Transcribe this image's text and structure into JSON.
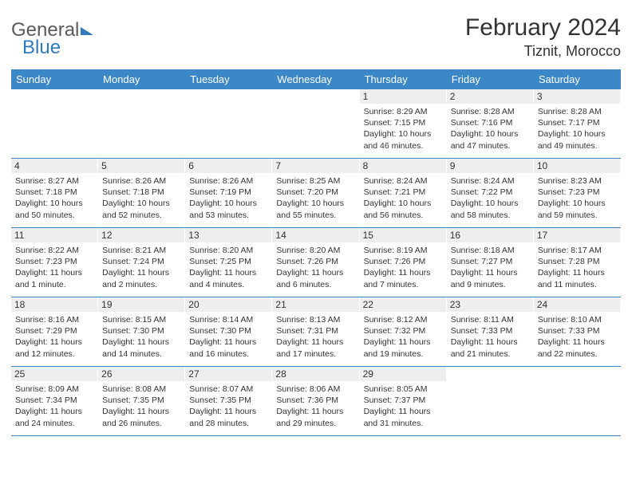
{
  "brand": {
    "part1": "General",
    "part2": "Blue"
  },
  "title": "February 2024",
  "location": "Tiznit, Morocco",
  "day_headers": [
    "Sunday",
    "Monday",
    "Tuesday",
    "Wednesday",
    "Thursday",
    "Friday",
    "Saturday"
  ],
  "colors": {
    "header_bg": "#3b87c8",
    "header_text": "#ffffff",
    "daynum_bg": "#eeeeee",
    "border": "#3b87c8",
    "text": "#333333",
    "logo_gray": "#5a5a5a",
    "logo_blue": "#2f7abf",
    "background": "#ffffff"
  },
  "weeks": [
    [
      null,
      null,
      null,
      null,
      {
        "n": "1",
        "sr": "8:29 AM",
        "ss": "7:15 PM",
        "dl": "10 hours and 46 minutes."
      },
      {
        "n": "2",
        "sr": "8:28 AM",
        "ss": "7:16 PM",
        "dl": "10 hours and 47 minutes."
      },
      {
        "n": "3",
        "sr": "8:28 AM",
        "ss": "7:17 PM",
        "dl": "10 hours and 49 minutes."
      }
    ],
    [
      {
        "n": "4",
        "sr": "8:27 AM",
        "ss": "7:18 PM",
        "dl": "10 hours and 50 minutes."
      },
      {
        "n": "5",
        "sr": "8:26 AM",
        "ss": "7:18 PM",
        "dl": "10 hours and 52 minutes."
      },
      {
        "n": "6",
        "sr": "8:26 AM",
        "ss": "7:19 PM",
        "dl": "10 hours and 53 minutes."
      },
      {
        "n": "7",
        "sr": "8:25 AM",
        "ss": "7:20 PM",
        "dl": "10 hours and 55 minutes."
      },
      {
        "n": "8",
        "sr": "8:24 AM",
        "ss": "7:21 PM",
        "dl": "10 hours and 56 minutes."
      },
      {
        "n": "9",
        "sr": "8:24 AM",
        "ss": "7:22 PM",
        "dl": "10 hours and 58 minutes."
      },
      {
        "n": "10",
        "sr": "8:23 AM",
        "ss": "7:23 PM",
        "dl": "10 hours and 59 minutes."
      }
    ],
    [
      {
        "n": "11",
        "sr": "8:22 AM",
        "ss": "7:23 PM",
        "dl": "11 hours and 1 minute."
      },
      {
        "n": "12",
        "sr": "8:21 AM",
        "ss": "7:24 PM",
        "dl": "11 hours and 2 minutes."
      },
      {
        "n": "13",
        "sr": "8:20 AM",
        "ss": "7:25 PM",
        "dl": "11 hours and 4 minutes."
      },
      {
        "n": "14",
        "sr": "8:20 AM",
        "ss": "7:26 PM",
        "dl": "11 hours and 6 minutes."
      },
      {
        "n": "15",
        "sr": "8:19 AM",
        "ss": "7:26 PM",
        "dl": "11 hours and 7 minutes."
      },
      {
        "n": "16",
        "sr": "8:18 AM",
        "ss": "7:27 PM",
        "dl": "11 hours and 9 minutes."
      },
      {
        "n": "17",
        "sr": "8:17 AM",
        "ss": "7:28 PM",
        "dl": "11 hours and 11 minutes."
      }
    ],
    [
      {
        "n": "18",
        "sr": "8:16 AM",
        "ss": "7:29 PM",
        "dl": "11 hours and 12 minutes."
      },
      {
        "n": "19",
        "sr": "8:15 AM",
        "ss": "7:30 PM",
        "dl": "11 hours and 14 minutes."
      },
      {
        "n": "20",
        "sr": "8:14 AM",
        "ss": "7:30 PM",
        "dl": "11 hours and 16 minutes."
      },
      {
        "n": "21",
        "sr": "8:13 AM",
        "ss": "7:31 PM",
        "dl": "11 hours and 17 minutes."
      },
      {
        "n": "22",
        "sr": "8:12 AM",
        "ss": "7:32 PM",
        "dl": "11 hours and 19 minutes."
      },
      {
        "n": "23",
        "sr": "8:11 AM",
        "ss": "7:33 PM",
        "dl": "11 hours and 21 minutes."
      },
      {
        "n": "24",
        "sr": "8:10 AM",
        "ss": "7:33 PM",
        "dl": "11 hours and 22 minutes."
      }
    ],
    [
      {
        "n": "25",
        "sr": "8:09 AM",
        "ss": "7:34 PM",
        "dl": "11 hours and 24 minutes."
      },
      {
        "n": "26",
        "sr": "8:08 AM",
        "ss": "7:35 PM",
        "dl": "11 hours and 26 minutes."
      },
      {
        "n": "27",
        "sr": "8:07 AM",
        "ss": "7:35 PM",
        "dl": "11 hours and 28 minutes."
      },
      {
        "n": "28",
        "sr": "8:06 AM",
        "ss": "7:36 PM",
        "dl": "11 hours and 29 minutes."
      },
      {
        "n": "29",
        "sr": "8:05 AM",
        "ss": "7:37 PM",
        "dl": "11 hours and 31 minutes."
      },
      null,
      null
    ]
  ],
  "labels": {
    "sunrise": "Sunrise: ",
    "sunset": "Sunset: ",
    "daylight": "Daylight: "
  }
}
